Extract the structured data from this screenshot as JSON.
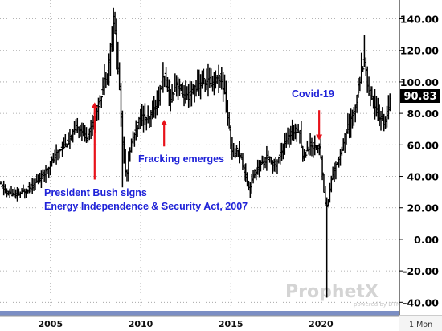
{
  "chart_data": {
    "type": "ohlc",
    "y_axis": {
      "min": -48,
      "max": 152,
      "ticks": [
        "140.00",
        "120.00",
        "100.00",
        "80.00",
        "60.00",
        "40.00",
        "20.00",
        "0.00",
        "-20.00",
        "-40.00"
      ],
      "tick_values": [
        140,
        120,
        100,
        80,
        60,
        40,
        20,
        0,
        -20,
        -40
      ],
      "grid": "dotted"
    },
    "x_axis": {
      "min": 2002.2,
      "max": 2024.35,
      "ticks": [
        "2005",
        "2010",
        "2015",
        "2020"
      ],
      "tick_values": [
        2005,
        2010,
        2015,
        2020
      ]
    },
    "last_value": {
      "label": "90.83",
      "value": 90.83
    },
    "period_label": "1 Mon",
    "watermark": {
      "name": "ProphetX",
      "tagline": "powered by DTN"
    },
    "annotations": [
      {
        "lines": [
          "President Bush signs",
          "Energy Independence & Security Act, 2007"
        ],
        "arrow_x": 2007.45,
        "arrow_y_from": 38,
        "arrow_y_to": 87
      },
      {
        "lines": [
          "Fracking emerges"
        ],
        "arrow_x": 2011.3,
        "arrow_y_from": 59,
        "arrow_y_to": 76
      },
      {
        "lines": [
          "Covid-19"
        ],
        "arrow_x": 2019.9,
        "arrow_y_from": 82,
        "arrow_y_to": 63
      }
    ],
    "anchors": [
      [
        2002.2,
        35
      ],
      [
        2002.6,
        30
      ],
      [
        2003.0,
        28
      ],
      [
        2003.5,
        30
      ],
      [
        2004.0,
        34
      ],
      [
        2004.5,
        40
      ],
      [
        2005.0,
        48
      ],
      [
        2005.5,
        57
      ],
      [
        2006.0,
        62
      ],
      [
        2006.5,
        72
      ],
      [
        2007.0,
        65
      ],
      [
        2007.4,
        75
      ],
      [
        2007.8,
        92
      ],
      [
        2008.2,
        110
      ],
      [
        2008.5,
        140
      ],
      [
        2008.8,
        100
      ],
      [
        2009.0,
        60
      ],
      [
        2009.2,
        40
      ],
      [
        2009.5,
        62
      ],
      [
        2009.8,
        72
      ],
      [
        2010.0,
        78
      ],
      [
        2010.5,
        76
      ],
      [
        2011.0,
        90
      ],
      [
        2011.3,
        105
      ],
      [
        2011.6,
        88
      ],
      [
        2012.0,
        100
      ],
      [
        2012.3,
        92
      ],
      [
        2012.6,
        90
      ],
      [
        2013.0,
        96
      ],
      [
        2013.5,
        100
      ],
      [
        2014.0,
        100
      ],
      [
        2014.4,
        103
      ],
      [
        2014.7,
        92
      ],
      [
        2014.9,
        70
      ],
      [
        2015.1,
        52
      ],
      [
        2015.4,
        58
      ],
      [
        2015.7,
        46
      ],
      [
        2016.0,
        32
      ],
      [
        2016.3,
        42
      ],
      [
        2016.6,
        46
      ],
      [
        2017.0,
        52
      ],
      [
        2017.5,
        47
      ],
      [
        2018.0,
        62
      ],
      [
        2018.4,
        68
      ],
      [
        2018.8,
        70
      ],
      [
        2019.0,
        52
      ],
      [
        2019.4,
        60
      ],
      [
        2019.9,
        58
      ],
      [
        2020.0,
        52
      ],
      [
        2020.2,
        25
      ],
      [
        2020.35,
        20
      ],
      [
        2020.6,
        40
      ],
      [
        2021.0,
        52
      ],
      [
        2021.4,
        68
      ],
      [
        2021.8,
        80
      ],
      [
        2022.0,
        90
      ],
      [
        2022.2,
        105
      ],
      [
        2022.4,
        115
      ],
      [
        2022.6,
        96
      ],
      [
        2022.9,
        88
      ],
      [
        2023.2,
        78
      ],
      [
        2023.5,
        74
      ],
      [
        2023.7,
        82
      ],
      [
        2023.9,
        90
      ]
    ],
    "highlights": [
      {
        "x": 2008.5,
        "high": 147
      },
      {
        "x": 2009.0,
        "low": 33
      },
      {
        "x": 2016.05,
        "low": 26
      },
      {
        "x": 2020.3,
        "low": -37
      },
      {
        "x": 2022.42,
        "high": 130
      }
    ]
  }
}
